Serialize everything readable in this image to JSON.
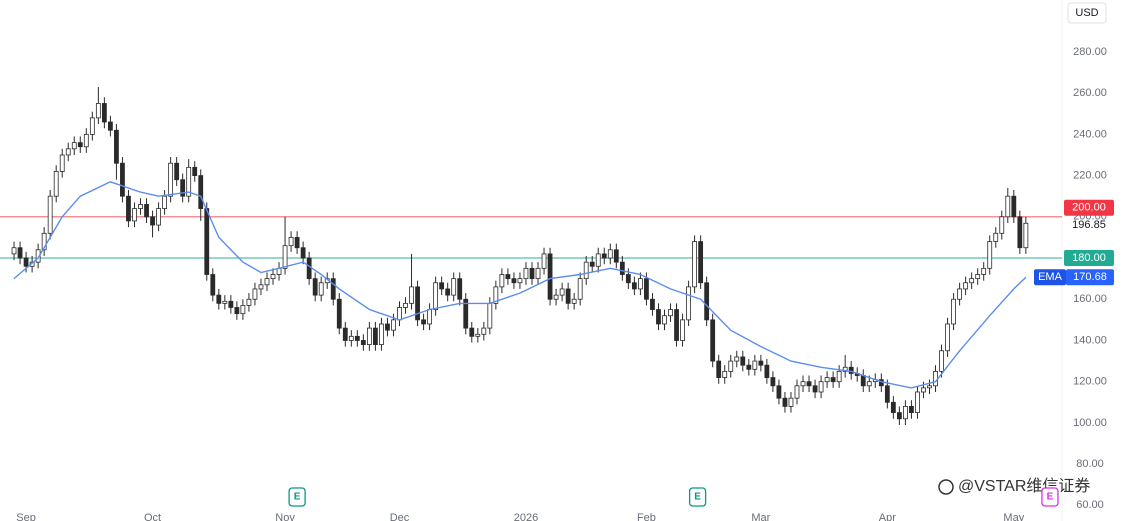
{
  "chart_data": {
    "type": "candlestick",
    "currency": "USD",
    "x": [
      0,
      1,
      2,
      3,
      4,
      5,
      6,
      7,
      8,
      9,
      10,
      11,
      12,
      13,
      14,
      15,
      16,
      17,
      18,
      19,
      20,
      21,
      22,
      23,
      24,
      25,
      26,
      27,
      28,
      29,
      30,
      31,
      32,
      33,
      34,
      35,
      36,
      37,
      38,
      39,
      40,
      41,
      42,
      43,
      44,
      45,
      46,
      47,
      48,
      49,
      50,
      51,
      52,
      53,
      54,
      55,
      56,
      57,
      58,
      59,
      60,
      61,
      62,
      63,
      64,
      65,
      66,
      67,
      68,
      69,
      70,
      71,
      72,
      73,
      74,
      75,
      76,
      77,
      78,
      79,
      80,
      81,
      82,
      83,
      84,
      85,
      86,
      87,
      88,
      89,
      90,
      91,
      92,
      93,
      94,
      95,
      96,
      97,
      98,
      99,
      100,
      101,
      102,
      103,
      104,
      105,
      106,
      107,
      108,
      109,
      110,
      111,
      112,
      113,
      114,
      115,
      116,
      117,
      118,
      119,
      120,
      121,
      122,
      123,
      124,
      125,
      126,
      127,
      128,
      129,
      130,
      131,
      132,
      133,
      134,
      135,
      136,
      137,
      138,
      139,
      140,
      141,
      142,
      143,
      144,
      145,
      146,
      147,
      148,
      149,
      150,
      151,
      152,
      153,
      154,
      155,
      156,
      157,
      158,
      159,
      160,
      161,
      162,
      163,
      164,
      165,
      166,
      167,
      168
    ],
    "open": [
      182,
      185,
      180,
      176,
      178,
      184,
      192,
      210,
      222,
      230,
      233,
      236,
      234,
      240,
      248,
      255,
      246,
      242,
      226,
      210,
      198,
      204,
      206,
      200,
      196,
      204,
      210,
      226,
      218,
      210,
      224,
      220,
      204,
      172,
      162,
      158,
      159,
      156,
      153,
      157,
      160,
      165,
      167,
      170,
      172,
      175,
      186,
      190,
      185,
      180,
      170,
      162,
      168,
      170,
      160,
      146,
      140,
      142,
      140,
      138,
      146,
      138,
      148,
      145,
      150,
      156,
      158,
      166,
      150,
      148,
      155,
      168,
      165,
      162,
      170,
      160,
      146,
      142,
      143,
      146,
      158,
      166,
      172,
      170,
      168,
      170,
      175,
      170,
      175,
      182,
      160,
      162,
      165,
      158,
      160,
      170,
      178,
      176,
      182,
      180,
      184,
      178,
      172,
      168,
      165,
      170,
      160,
      155,
      148,
      152,
      155,
      140,
      150,
      166,
      188,
      168,
      150,
      130,
      122,
      125,
      130,
      132,
      128,
      126,
      130,
      128,
      122,
      118,
      112,
      108,
      112,
      118,
      120,
      118,
      115,
      120,
      122,
      120,
      125,
      127,
      124,
      123,
      118,
      120,
      121,
      118,
      110,
      105,
      102,
      108,
      105,
      115,
      117,
      118,
      125,
      135,
      148,
      160,
      165,
      168,
      170,
      172,
      175,
      188,
      192,
      200,
      210,
      200,
      185
    ],
    "high": [
      188,
      188,
      183,
      181,
      187,
      195,
      213,
      225,
      233,
      236,
      239,
      239,
      243,
      251,
      263,
      258,
      249,
      245,
      229,
      213,
      207,
      209,
      209,
      203,
      207,
      213,
      229,
      229,
      221,
      228,
      227,
      223,
      207,
      175,
      165,
      162,
      162,
      159,
      160,
      163,
      168,
      170,
      173,
      175,
      178,
      200,
      193,
      193,
      188,
      183,
      173,
      171,
      173,
      173,
      163,
      149,
      145,
      145,
      143,
      149,
      149,
      151,
      151,
      153,
      159,
      161,
      182,
      169,
      153,
      158,
      171,
      171,
      168,
      173,
      173,
      163,
      149,
      146,
      149,
      161,
      169,
      175,
      175,
      173,
      173,
      178,
      178,
      178,
      185,
      185,
      165,
      168,
      168,
      163,
      173,
      181,
      181,
      185,
      185,
      187,
      187,
      181,
      175,
      171,
      173,
      173,
      163,
      158,
      155,
      158,
      158,
      153,
      169,
      191,
      191,
      171,
      153,
      133,
      128,
      133,
      135,
      135,
      131,
      133,
      133,
      131,
      125,
      121,
      115,
      115,
      121,
      123,
      123,
      121,
      123,
      125,
      125,
      128,
      133,
      130,
      127,
      126,
      123,
      124,
      124,
      121,
      113,
      108,
      111,
      111,
      118,
      120,
      121,
      128,
      138,
      151,
      163,
      168,
      171,
      173,
      175,
      178,
      191,
      195,
      203,
      214,
      213,
      203,
      200
    ],
    "low": [
      179,
      177,
      173,
      173,
      175,
      181,
      189,
      207,
      219,
      227,
      230,
      231,
      231,
      237,
      245,
      243,
      239,
      218,
      207,
      195,
      195,
      201,
      197,
      190,
      193,
      201,
      207,
      215,
      207,
      207,
      217,
      198,
      169,
      159,
      155,
      155,
      153,
      150,
      150,
      154,
      157,
      162,
      164,
      167,
      169,
      172,
      183,
      182,
      177,
      167,
      159,
      159,
      165,
      157,
      143,
      137,
      137,
      137,
      135,
      135,
      135,
      135,
      142,
      142,
      147,
      153,
      155,
      147,
      145,
      145,
      152,
      162,
      159,
      159,
      157,
      143,
      139,
      139,
      140,
      143,
      155,
      163,
      167,
      165,
      165,
      167,
      167,
      167,
      172,
      157,
      157,
      159,
      155,
      155,
      157,
      167,
      173,
      173,
      177,
      177,
      175,
      169,
      165,
      162,
      162,
      157,
      152,
      145,
      145,
      149,
      137,
      137,
      147,
      163,
      165,
      147,
      127,
      119,
      119,
      122,
      127,
      125,
      123,
      123,
      125,
      119,
      115,
      109,
      105,
      105,
      109,
      115,
      115,
      112,
      112,
      117,
      117,
      117,
      122,
      121,
      120,
      115,
      115,
      117,
      115,
      107,
      102,
      99,
      99,
      102,
      102,
      112,
      114,
      115,
      122,
      132,
      145,
      157,
      162,
      165,
      167,
      169,
      172,
      185,
      189,
      197,
      197,
      182,
      182
    ],
    "close": [
      185,
      180,
      176,
      178,
      184,
      192,
      210,
      222,
      230,
      233,
      236,
      234,
      240,
      248,
      255,
      246,
      242,
      226,
      210,
      198,
      204,
      206,
      200,
      196,
      204,
      210,
      226,
      218,
      210,
      224,
      220,
      204,
      172,
      162,
      158,
      159,
      156,
      153,
      157,
      160,
      165,
      167,
      170,
      172,
      175,
      186,
      190,
      185,
      180,
      170,
      162,
      168,
      170,
      160,
      146,
      140,
      142,
      140,
      138,
      146,
      138,
      148,
      145,
      150,
      156,
      158,
      166,
      150,
      148,
      155,
      168,
      165,
      162,
      170,
      160,
      146,
      142,
      143,
      146,
      158,
      166,
      172,
      170,
      168,
      170,
      175,
      170,
      175,
      182,
      160,
      162,
      165,
      158,
      160,
      170,
      178,
      176,
      182,
      180,
      184,
      178,
      172,
      168,
      165,
      170,
      160,
      155,
      148,
      152,
      155,
      140,
      150,
      166,
      188,
      168,
      150,
      130,
      122,
      125,
      130,
      132,
      128,
      126,
      130,
      128,
      122,
      118,
      112,
      108,
      112,
      118,
      120,
      118,
      115,
      120,
      122,
      120,
      125,
      127,
      124,
      123,
      118,
      120,
      121,
      118,
      110,
      105,
      102,
      108,
      105,
      115,
      117,
      118,
      125,
      135,
      148,
      160,
      165,
      168,
      170,
      172,
      175,
      188,
      192,
      200,
      210,
      200,
      185,
      196.85
    ],
    "up_color": "#ffffff",
    "down_color": "#2a2a2a",
    "outline_color": "#2a2a2a",
    "overlays": [
      {
        "name": "EMA",
        "color": "#5b8def",
        "x": [
          0,
          4,
          8,
          11,
          16,
          21,
          24,
          29,
          31,
          34,
          38,
          41,
          44,
          48,
          51,
          54,
          59,
          64,
          69,
          74,
          79,
          84,
          89,
          94,
          99,
          104,
          109,
          114,
          119,
          124,
          129,
          134,
          139,
          144,
          149,
          153,
          157,
          162,
          166,
          168
        ],
        "values": [
          170,
          180,
          200,
          210,
          217,
          212,
          210,
          212,
          210,
          190,
          178,
          173,
          175,
          178,
          172,
          165,
          155,
          150,
          155,
          158,
          158,
          163,
          170,
          172,
          175,
          172,
          165,
          160,
          145,
          137,
          130,
          127,
          125,
          120,
          117,
          120,
          135,
          152,
          165,
          170.68
        ]
      }
    ],
    "hlines": [
      {
        "value": 200,
        "label": "200.00",
        "color": "#f23645"
      },
      {
        "value": 180,
        "label": "180.00",
        "color": "#22ab94"
      }
    ],
    "events": [
      {
        "x": 47,
        "label": "E",
        "color": "#089981"
      },
      {
        "x": 113.5,
        "label": "E",
        "color": "#089981"
      },
      {
        "x": 172,
        "label": "E",
        "color": "#d633e6"
      }
    ],
    "xlim": [
      -2.33,
      174
    ],
    "ylim": [
      52.4,
      305.2
    ],
    "xticks": [
      {
        "value": 2,
        "label": "Sep"
      },
      {
        "value": 23,
        "label": "Oct"
      },
      {
        "value": 45,
        "label": "Nov"
      },
      {
        "value": 64,
        "label": "Dec"
      },
      {
        "value": 85,
        "label": "2026"
      },
      {
        "value": 105,
        "label": "Feb"
      },
      {
        "value": 124,
        "label": "Mar"
      },
      {
        "value": 145,
        "label": "Apr"
      },
      {
        "value": 166,
        "label": "May"
      }
    ],
    "yticks": [
      {
        "value": 60,
        "label": "60.00"
      },
      {
        "value": 80,
        "label": "80.00"
      },
      {
        "value": 100,
        "label": "100.00"
      },
      {
        "value": 120,
        "label": "120.00"
      },
      {
        "value": 140,
        "label": "140.00"
      },
      {
        "value": 160,
        "label": "160.00"
      },
      {
        "value": 180,
        "label": "180.00"
      },
      {
        "value": 200,
        "label": "200.00"
      },
      {
        "value": 220,
        "label": "220.00"
      },
      {
        "value": 240,
        "label": "240.00"
      },
      {
        "value": 260,
        "label": "260.00"
      },
      {
        "value": 280,
        "label": "280.00"
      }
    ],
    "watermark": "@VSTAR维信证券"
  }
}
